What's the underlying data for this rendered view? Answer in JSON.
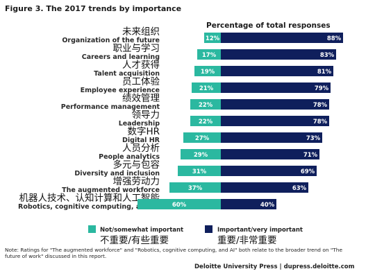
{
  "figure_title": "Figure 3. The 2017 trends by importance",
  "chart_data": {
    "type": "bar",
    "stacked": "diverging",
    "title": "Figure 3. The 2017 trends by importance",
    "header": "Percentage of total responses",
    "categories": [
      "Organization of the future",
      "Careers and learning",
      "Talent acquisition",
      "Employee experience",
      "Performance management",
      "Leadership",
      "Digital HR",
      "People analytics",
      "Diversity and inclusion",
      "The augmented workforce",
      "Robotics, cognitive computing, and AI"
    ],
    "categories_cn": [
      "未来组织",
      "职业与学习",
      "人才获得",
      "员工体验",
      "绩效管理",
      "领导力",
      "数字HR",
      "人员分析",
      "多元与包容",
      "增强劳动力",
      "机器人技术、认知计算和人工智能"
    ],
    "series": [
      {
        "name": "Not/somewhat important",
        "name_cn": "不重要/有些重要",
        "color": "#2bb8a0",
        "values": [
          12,
          17,
          19,
          21,
          22,
          22,
          27,
          29,
          31,
          37,
          60
        ]
      },
      {
        "name": "Important/very important",
        "name_cn": "重要/非常重要",
        "color": "#0f1f5c",
        "values": [
          88,
          83,
          81,
          79,
          78,
          78,
          73,
          71,
          69,
          63,
          40
        ]
      }
    ],
    "value_suffix": "%"
  },
  "note": "Note: Ratings for \"The augmented workforce\" and \"Robotics, cognitive computing, and AI\" both relate to the broader trend on \"The future of work\" discussed in this report.",
  "source": "Deloitte University Press  |  dupress.deloitte.com"
}
